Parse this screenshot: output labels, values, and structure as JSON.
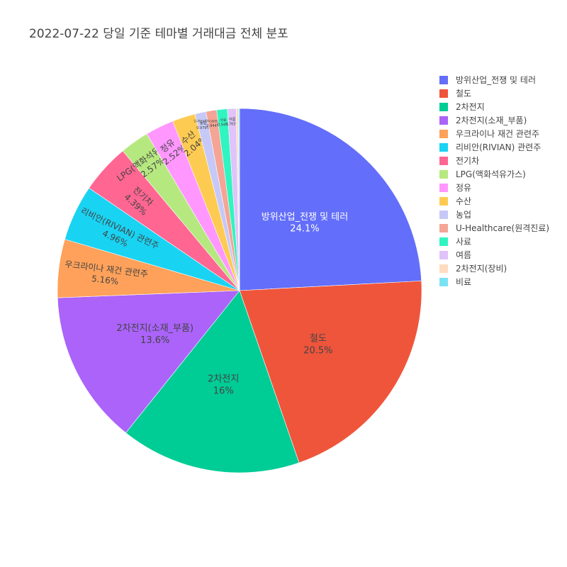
{
  "chart_data": {
    "type": "pie",
    "title": "2022-07-22 당일 기준 테마별 거래대금 전체 분포",
    "slices": [
      {
        "label": "방위산업_전쟁 및 테러",
        "value": 24.1,
        "text": "24.1%",
        "color": "#636efa"
      },
      {
        "label": "철도",
        "value": 20.5,
        "text": "20.5%",
        "color": "#ef553b"
      },
      {
        "label": "2차전지",
        "value": 16.0,
        "text": "16%",
        "color": "#00cc96"
      },
      {
        "label": "2차전지(소재_부품)",
        "value": 13.6,
        "text": "13.6%",
        "color": "#ab63fa"
      },
      {
        "label": "우크라이나 재건 관련주",
        "value": 5.16,
        "text": "5.16%",
        "color": "#ffa15a"
      },
      {
        "label": "리비안(RIVIAN) 관련주",
        "value": 4.96,
        "text": "4.96%",
        "color": "#19d3f3"
      },
      {
        "label": "전기차",
        "value": 4.39,
        "text": "4.39%",
        "color": "#ff6692"
      },
      {
        "label": "LPG(액화석유가스)",
        "value": 2.57,
        "text": "2.57%",
        "color": "#b6e880"
      },
      {
        "label": "정유",
        "value": 2.52,
        "text": "2.52%",
        "color": "#ff97ff"
      },
      {
        "label": "수산",
        "value": 2.04,
        "text": "2.04%",
        "color": "#fecb52"
      },
      {
        "label": "농업",
        "value": 0.979,
        "text": "0.979%",
        "color": "#c6c9f7"
      },
      {
        "label": "U-Healthcare(원격진료)",
        "value": 0.944,
        "text": "0.944%",
        "color": "#f4a595"
      },
      {
        "label": "사료",
        "value": 0.94,
        "text": "0.94%",
        "color": "#30f5c0"
      },
      {
        "label": "여름",
        "value": 0.765,
        "text": "0.765%",
        "color": "#dfc3f9"
      },
      {
        "label": "2차전지(장비)",
        "value": 0.2,
        "text": "",
        "color": "#ffdcc0"
      },
      {
        "label": "비료",
        "value": 0.1,
        "text": "",
        "color": "#79e3f4"
      }
    ],
    "legend_position": "top-right"
  }
}
